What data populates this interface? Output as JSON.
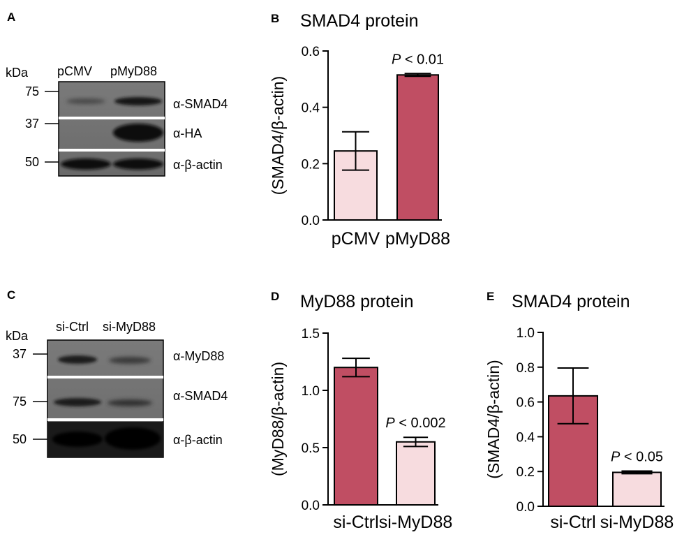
{
  "panels": {
    "A": "A",
    "B": "B",
    "C": "C",
    "D": "D",
    "E": "E"
  },
  "blot_a": {
    "kda": "kDa",
    "lanes": [
      "pCMV",
      "pMyD88"
    ],
    "markers": [
      "75",
      "37",
      "50"
    ],
    "antibodies": [
      "α-SMAD4",
      "α-HA",
      "α-β-actin"
    ]
  },
  "blot_c": {
    "kda": "kDa",
    "lanes": [
      "si-Ctrl",
      "si-MyD88"
    ],
    "markers": [
      "37",
      "75",
      "50"
    ],
    "antibodies": [
      "α-MyD88",
      "α-SMAD4",
      "α-β-actin"
    ]
  },
  "chart_data": [
    {
      "id": "B",
      "type": "bar",
      "title": "SMAD4 protein",
      "ylabel": "(SMAD4/β-actin)",
      "categories": [
        "pCMV",
        "pMyD88"
      ],
      "values": [
        0.245,
        0.515
      ],
      "errors": [
        0.068,
        0.005
      ],
      "colors": [
        "#f7dcdf",
        "#c04e63"
      ],
      "ylim": [
        0,
        0.6
      ],
      "yticks": [
        0.0,
        0.2,
        0.4,
        0.6
      ],
      "yticklabels": [
        "0.0",
        "0.2",
        "0.4",
        "0.6"
      ],
      "annotation": {
        "italic": "P",
        "text": " < 0.01",
        "category": 1
      }
    },
    {
      "id": "D",
      "type": "bar",
      "title": "MyD88 protein",
      "ylabel": "(MyD88/β-actin)",
      "categories": [
        "si-Ctrl",
        "si-MyD88"
      ],
      "values": [
        1.2,
        0.55
      ],
      "errors": [
        0.08,
        0.04
      ],
      "colors": [
        "#c04e63",
        "#f7dcdf"
      ],
      "ylim": [
        0,
        1.5
      ],
      "yticks": [
        0.0,
        0.5,
        1.0,
        1.5
      ],
      "yticklabels": [
        "0.0",
        "0.5",
        "1.0",
        "1.5"
      ],
      "annotation": {
        "italic": "P",
        "text": " < 0.002",
        "category": 1
      }
    },
    {
      "id": "E",
      "type": "bar",
      "title": "SMAD4 protein",
      "ylabel": "(SMAD4/β-actin)",
      "categories": [
        "si-Ctrl",
        "si-MyD88"
      ],
      "values": [
        0.635,
        0.195
      ],
      "errors": [
        0.16,
        0.008
      ],
      "colors": [
        "#c04e63",
        "#f7dcdf"
      ],
      "ylim": [
        0,
        1.0
      ],
      "yticks": [
        0.0,
        0.2,
        0.4,
        0.6,
        0.8,
        1.0
      ],
      "yticklabels": [
        "0.0",
        "0.2",
        "0.4",
        "0.6",
        "0.8",
        "1.0"
      ],
      "annotation": {
        "italic": "P",
        "text": " < 0.05",
        "category": 1
      }
    }
  ]
}
